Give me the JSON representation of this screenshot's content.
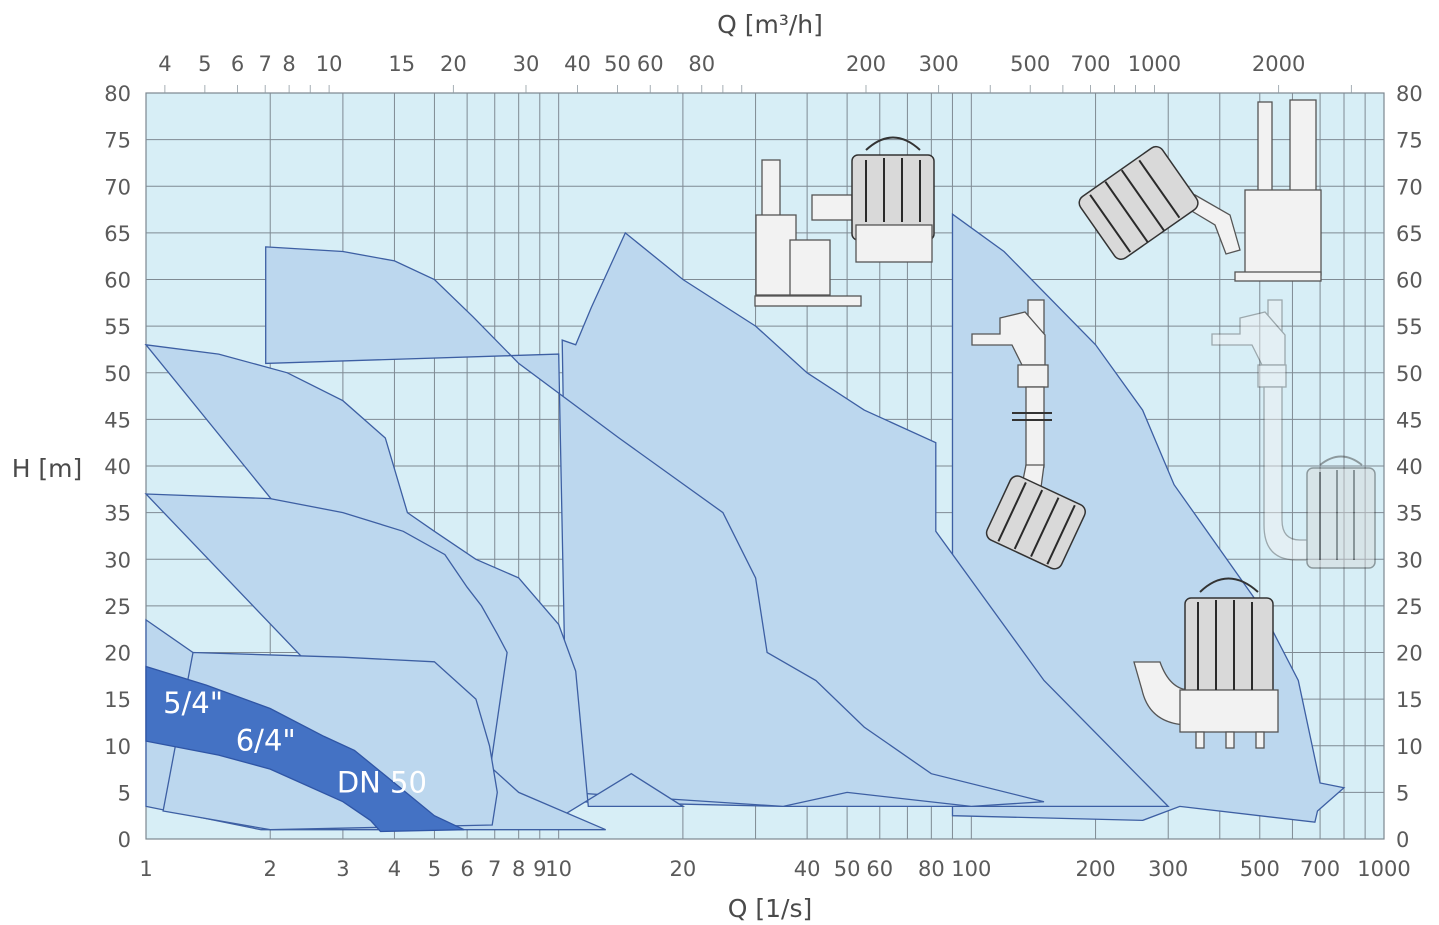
{
  "chart_data": {
    "type": "area",
    "title": "",
    "xlabel": "Q [1/s]",
    "x2label": "Q [m³/h]",
    "ylabel": "H [m]",
    "x_scale": "log",
    "xlim": [
      1,
      1000
    ],
    "ylim": [
      0,
      80
    ],
    "grid": true,
    "x_ticks": [
      1,
      2,
      3,
      4,
      5,
      6,
      7,
      8,
      9,
      10,
      20,
      40,
      50,
      60,
      80,
      100,
      200,
      300,
      500,
      700,
      1000
    ],
    "x_tick_labels": [
      "1",
      "2",
      "3",
      "4",
      "5",
      "6",
      "7",
      "8",
      "9",
      "10",
      "20",
      "40",
      "50",
      "60",
      "80",
      "100",
      "200",
      "300",
      "500",
      "700",
      "1000"
    ],
    "x2_ticks": [
      4,
      5,
      6,
      7,
      8,
      10,
      15,
      20,
      30,
      40,
      50,
      60,
      80,
      200,
      300,
      500,
      700,
      1000,
      2000
    ],
    "x2_tick_labels": [
      "4",
      "5",
      "6",
      "7",
      "8",
      "10",
      "15",
      "20",
      "30",
      "40",
      "50",
      "60",
      "80",
      "200",
      "300",
      "500",
      "700",
      "1000",
      "2000"
    ],
    "y_ticks": [
      0,
      5,
      10,
      15,
      20,
      25,
      30,
      35,
      40,
      45,
      50,
      55,
      60,
      65,
      70,
      75,
      80
    ],
    "y_tick_labels": [
      "0",
      "5",
      "10",
      "15",
      "20",
      "25",
      "30",
      "35",
      "40",
      "45",
      "50",
      "55",
      "60",
      "65",
      "70",
      "75",
      "80"
    ],
    "regions": [
      {
        "id": "range-large-pumps",
        "points": [
          [
            90,
            67
          ],
          [
            120,
            63
          ],
          [
            200,
            53
          ],
          [
            260,
            46
          ],
          [
            310,
            38
          ],
          [
            500,
            25
          ],
          [
            620,
            17
          ],
          [
            700,
            6
          ],
          [
            800,
            5.5
          ],
          [
            690,
            3
          ],
          [
            680,
            1.8
          ],
          [
            320,
            3.5
          ],
          [
            260,
            2
          ],
          [
            90,
            2.5
          ]
        ]
      },
      {
        "id": "range-d",
        "points": [
          [
            14.5,
            65
          ],
          [
            20,
            60
          ],
          [
            30,
            55
          ],
          [
            40,
            50
          ],
          [
            55,
            46
          ],
          [
            82,
            42.5
          ],
          [
            82,
            33
          ],
          [
            150,
            17
          ],
          [
            300,
            3.5
          ],
          [
            35,
            3.5
          ],
          [
            11,
            4
          ],
          [
            10.5,
            20
          ],
          [
            10.2,
            53.5
          ],
          [
            11,
            53
          ],
          [
            12,
            57
          ]
        ]
      },
      {
        "id": "range-c",
        "points": [
          [
            1.95,
            63.5
          ],
          [
            3,
            63
          ],
          [
            4,
            62
          ],
          [
            5,
            60
          ],
          [
            6.2,
            56
          ],
          [
            8,
            51
          ],
          [
            14,
            43
          ],
          [
            25,
            35
          ],
          [
            30,
            28
          ],
          [
            32,
            20
          ],
          [
            42,
            17
          ],
          [
            55,
            12
          ],
          [
            80,
            7
          ],
          [
            150,
            4
          ],
          [
            100,
            3.5
          ],
          [
            50,
            5
          ],
          [
            35,
            3.5
          ],
          [
            10.5,
            5
          ],
          [
            10,
            52
          ],
          [
            1.95,
            51
          ]
        ]
      },
      {
        "id": "range-b",
        "points": [
          [
            1,
            53
          ],
          [
            1.5,
            52
          ],
          [
            2.2,
            50
          ],
          [
            3,
            47
          ],
          [
            3.8,
            43
          ],
          [
            4.3,
            35
          ],
          [
            5,
            33
          ],
          [
            6.3,
            30
          ],
          [
            8,
            28
          ],
          [
            10,
            23
          ],
          [
            11,
            18
          ],
          [
            11.8,
            3.5
          ],
          [
            20,
            3.5
          ],
          [
            15,
            7
          ],
          [
            9,
            1
          ]
        ]
      },
      {
        "id": "range-a",
        "points": [
          [
            1,
            37
          ],
          [
            2,
            36.5
          ],
          [
            3,
            35
          ],
          [
            4.2,
            33
          ],
          [
            5.3,
            30.5
          ],
          [
            6,
            27
          ],
          [
            6.5,
            25
          ],
          [
            7.1,
            22
          ],
          [
            7.5,
            20
          ],
          [
            6.8,
            7
          ],
          [
            6.5,
            3.5
          ],
          [
            6,
            1
          ]
        ]
      },
      {
        "id": "range-e",
        "points": [
          [
            1,
            23.5
          ],
          [
            1.3,
            20
          ],
          [
            2,
            18
          ],
          [
            3,
            16
          ],
          [
            5,
            14
          ],
          [
            6,
            10
          ],
          [
            8,
            5
          ],
          [
            13,
            1
          ],
          [
            1.9,
            1
          ],
          [
            1,
            3.5
          ]
        ]
      },
      {
        "id": "range-f",
        "points": [
          [
            1.3,
            20
          ],
          [
            3,
            19.5
          ],
          [
            5,
            19
          ],
          [
            6.3,
            15
          ],
          [
            6.8,
            10
          ],
          [
            7.1,
            5
          ],
          [
            6.9,
            1.5
          ],
          [
            2,
            1
          ],
          [
            1.1,
            3
          ]
        ]
      }
    ],
    "bands": [
      {
        "id": "band-5-4",
        "points": [
          [
            1,
            18.5
          ],
          [
            1.4,
            16.5
          ],
          [
            2,
            14
          ],
          [
            2.7,
            11
          ],
          [
            3.2,
            9.5
          ],
          [
            4,
            6
          ],
          [
            5,
            2.5
          ],
          [
            5.9,
            1
          ]
        ]
      },
      {
        "id": "band-dn50",
        "points": [
          [
            1,
            10.5
          ],
          [
            1.5,
            9
          ],
          [
            2,
            7.5
          ],
          [
            3,
            4
          ],
          [
            3.5,
            2
          ],
          [
            3.7,
            0.8
          ]
        ]
      }
    ],
    "labels": [
      {
        "text": "5/4\"",
        "x": 1.1,
        "y": 13.5
      },
      {
        "text": "6/4\"",
        "x": 1.65,
        "y": 9.5
      },
      {
        "text": "DN 50",
        "x": 2.9,
        "y": 5
      }
    ]
  },
  "icons": {
    "pump_1": "pump-autocoupling-icon",
    "pump_2": "pump-autocoupling-large-icon",
    "pump_3": "pump-guide-rail-icon",
    "pump_4": "pump-guide-rail-faded-icon",
    "pump_5": "pump-freestanding-icon"
  },
  "colors": {
    "background": "#d7eef6",
    "zone_fill": "#bcd7ee",
    "zone_stroke": "#3d5fa3",
    "highlight": "#4472c4"
  }
}
